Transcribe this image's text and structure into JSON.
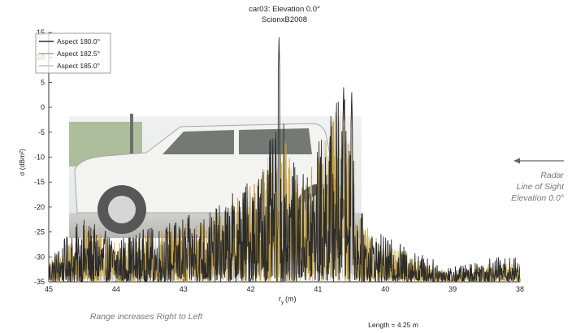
{
  "chart_data": {
    "type": "line",
    "title": "car03:  Elevation 0.0°",
    "subtitle": "ScionxB2008",
    "xlabel": "r",
    "xlabel_sub": "y",
    "xlabel_unit": " (m)",
    "ylabel": "σ (dBm²)",
    "xlim": [
      45,
      38
    ],
    "ylim": [
      -35,
      15
    ],
    "x_reversed": true,
    "x_ticks": [
      "45",
      "44",
      "43",
      "42",
      "41",
      "40",
      "39",
      "38"
    ],
    "y_ticks": [
      "15",
      "10",
      "5",
      "0",
      "-5",
      "-10",
      "-15",
      "-20",
      "-25",
      "-30",
      "-35"
    ],
    "grid": false,
    "legend_position": "top-left",
    "series": [
      {
        "name": "Aspect 180.0°",
        "color": "#2b2b2b"
      },
      {
        "name": "Aspect 182.5°",
        "color": "#c9a23a"
      },
      {
        "name": "Aspect 185.0°",
        "color": "#c4c4c4"
      }
    ],
    "envelope": {
      "x": [
        45.0,
        44.5,
        44.0,
        43.5,
        43.0,
        42.5,
        42.2,
        41.9,
        41.7,
        41.5,
        41.3,
        41.1,
        40.9,
        40.7,
        40.55,
        40.4,
        40.2,
        40.0,
        39.8,
        39.5,
        39.2,
        39.0,
        38.5,
        38.0
      ],
      "max": [
        -30,
        -22,
        -26,
        -24,
        -22,
        -20,
        -16,
        -12,
        -6,
        -3,
        -14,
        -10,
        -3,
        3,
        2,
        -20,
        -24,
        -26,
        -27,
        -29,
        -31,
        -32,
        -30,
        -30
      ],
      "min": [
        -35,
        -35,
        -35,
        -35,
        -35,
        -35,
        -35,
        -35,
        -35,
        -35,
        -35,
        -35,
        -35,
        -35,
        -35,
        -35,
        -35,
        -35,
        -35,
        -35,
        -35,
        -35,
        -35,
        -35
      ]
    },
    "peaks": [
      {
        "x": 41.58,
        "y": 14
      },
      {
        "x": 40.62,
        "y": 4
      },
      {
        "x": 40.5,
        "y": 3
      }
    ],
    "annotations": {
      "radar": "Radar",
      "line_of_sight": "Line of Sight",
      "elevation": "Elevation 0.0°",
      "range_note": "Range increases Right to Left",
      "length": "Length = 4.25 m"
    }
  }
}
